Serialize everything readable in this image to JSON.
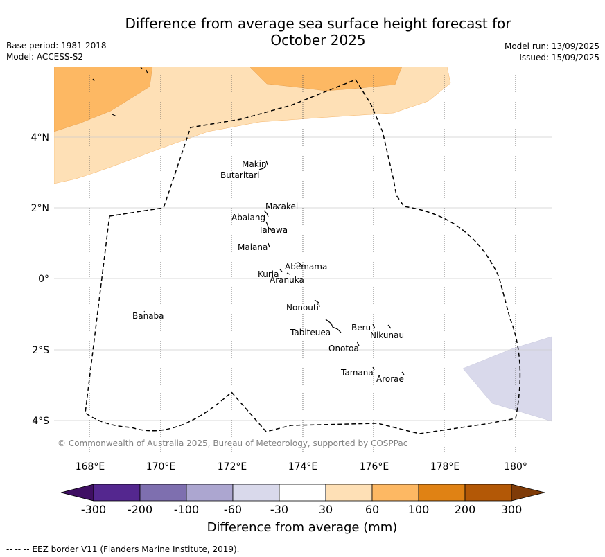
{
  "title": "Difference from average sea surface height forecast for October 2025",
  "title_lines": [
    "Difference from average sea surface height forecast for",
    "October 2025"
  ],
  "meta_left": [
    "Base period: 1981-2018",
    "Model: ACCESS-S2"
  ],
  "meta_right": [
    "Model run: 13/09/2025",
    "Issued: 15/09/2025"
  ],
  "lon_ticks": [
    "168°E",
    "170°E",
    "172°E",
    "174°E",
    "176°E",
    "178°E",
    "180°"
  ],
  "lat_ticks": [
    "4°N",
    "2°N",
    "0°",
    "2°S",
    "4°S"
  ],
  "places": {
    "makin": "Makin",
    "butaritari": "Butaritari",
    "marakei": "Marakei",
    "abaiang": "Abaiang",
    "tarawa": "Tarawa",
    "maiana": "Maiana",
    "abemama": "Abemama",
    "kuria": "Kuria",
    "aranuka": "Aranuka",
    "banaba": "Banaba",
    "nonouti": "Nonouti",
    "beru": "Beru",
    "tabiteuea": "Tabiteuea",
    "nikunau": "Nikunau",
    "onotoa": "Onotoa",
    "tamana": "Tamana",
    "arorae": "Arorae"
  },
  "copyright": "© Commonwealth of Australia 2025, Bureau of Meteorology, supported by COSPPac",
  "colorbar": {
    "label": "Difference from average (mm)",
    "ticks": [
      "-300",
      "-200",
      "-100",
      "-60",
      "-30",
      "30",
      "60",
      "100",
      "200",
      "300"
    ],
    "colors": [
      "#3f0f63",
      "#54278f",
      "#7e6faf",
      "#aca6d0",
      "#d9d9eb",
      "#ffffff",
      "#fee0b6",
      "#fdb863",
      "#e08214",
      "#b35806",
      "#7f3b08"
    ]
  },
  "legend_footer": "--  --  -- EEZ border V11 (Flanders Marine Institute, 2019)."
}
